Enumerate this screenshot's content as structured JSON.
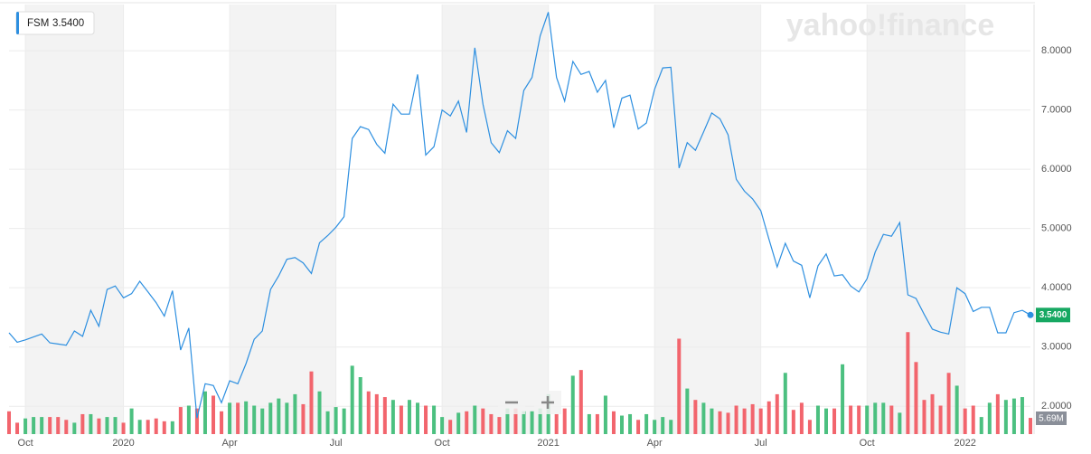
{
  "chart_data": {
    "type": "line",
    "watermark": "yahoo!finance",
    "categories": [
      null,
      null,
      "Oct",
      null,
      null,
      null,
      null,
      null,
      null,
      null,
      null,
      null,
      null,
      null,
      "2020",
      null,
      null,
      null,
      null,
      null,
      null,
      null,
      null,
      null,
      null,
      null,
      null,
      "Apr",
      null,
      null,
      null,
      null,
      null,
      null,
      null,
      null,
      null,
      null,
      null,
      null,
      "Jul",
      null,
      null,
      null,
      null,
      null,
      null,
      null,
      null,
      null,
      null,
      null,
      null,
      "Oct",
      null,
      null,
      null,
      null,
      null,
      null,
      null,
      null,
      null,
      null,
      null,
      null,
      "2021",
      null,
      null,
      null,
      null,
      null,
      null,
      null,
      null,
      null,
      null,
      null,
      null,
      "Apr",
      null,
      null,
      null,
      null,
      null,
      null,
      null,
      null,
      null,
      null,
      null,
      null,
      "Jul",
      null,
      null,
      null,
      null,
      null,
      null,
      null,
      null,
      null,
      null,
      null,
      null,
      "Oct",
      null,
      null,
      null,
      null,
      null,
      null,
      null,
      null,
      null,
      null,
      null,
      "2022",
      null,
      null,
      null,
      null,
      null,
      null,
      null,
      null
    ],
    "series": [
      {
        "name": "FSM",
        "color": "#2d8fe0",
        "last_label": "3.5400",
        "label_color": "#16a862",
        "values": [
          3.24,
          3.08,
          3.12,
          3.17,
          3.22,
          3.07,
          3.05,
          3.03,
          3.27,
          3.18,
          3.62,
          3.35,
          3.97,
          4.03,
          3.83,
          3.9,
          4.11,
          3.93,
          3.75,
          3.52,
          3.95,
          2.95,
          3.32,
          1.8,
          2.38,
          2.35,
          2.06,
          2.43,
          2.38,
          2.72,
          3.13,
          3.27,
          3.97,
          4.2,
          4.48,
          4.51,
          4.42,
          4.24,
          4.76,
          4.88,
          5.02,
          5.2,
          6.52,
          6.72,
          6.67,
          6.42,
          6.27,
          7.1,
          6.93,
          6.93,
          7.6,
          6.24,
          6.38,
          7.0,
          6.9,
          7.15,
          6.62,
          8.05,
          7.1,
          6.45,
          6.28,
          6.65,
          6.52,
          7.33,
          7.55,
          8.25,
          8.65,
          7.55,
          7.15,
          7.82,
          7.6,
          7.65,
          7.3,
          7.5,
          6.7,
          7.2,
          7.25,
          6.68,
          6.78,
          7.35,
          7.71,
          7.72,
          6.02,
          6.45,
          6.32,
          6.63,
          6.95,
          6.85,
          6.58,
          5.83,
          5.63,
          5.5,
          5.3,
          4.82,
          4.35,
          4.75,
          4.45,
          4.38,
          3.83,
          4.37,
          4.57,
          4.2,
          4.22,
          4.03,
          3.93,
          4.15,
          4.6,
          4.9,
          4.87,
          5.1,
          3.88,
          3.82,
          3.55,
          3.3,
          3.25,
          3.22,
          4.0,
          3.9,
          3.6,
          3.67,
          3.67,
          3.24,
          3.24,
          3.58,
          3.62,
          3.54
        ]
      }
    ],
    "volume": {
      "up_color": "#4cc080",
      "down_color": "#f2656d",
      "ylim": [
        0,
        40
      ],
      "last_label": "5.69M",
      "values": [
        8,
        4,
        5.5,
        6,
        6,
        6,
        6,
        5,
        4,
        7,
        7,
        5.5,
        6,
        6,
        4,
        9,
        5,
        5,
        5.5,
        4.5,
        4.5,
        9.5,
        10,
        9,
        15,
        13.5,
        8,
        11,
        11,
        11.5,
        10,
        9,
        11,
        12.5,
        11,
        14,
        10.5,
        22,
        15,
        8,
        9.5,
        9,
        24,
        20,
        15,
        14,
        13,
        12,
        10,
        12,
        11,
        10,
        10,
        6,
        5,
        7.5,
        8,
        10,
        9,
        7,
        6,
        9,
        9,
        8,
        8,
        9,
        14,
        7,
        9,
        20.5,
        22.5,
        7,
        7,
        13.5,
        8,
        6.5,
        7,
        5,
        7,
        5,
        6,
        5,
        33.5,
        16,
        12,
        11,
        9,
        8,
        7.5,
        10,
        9,
        10.5,
        9,
        11.5,
        14,
        21.5,
        8.5,
        11,
        5,
        10,
        9,
        9,
        24.5,
        10,
        10,
        10,
        11,
        11,
        10,
        7.5,
        35.8,
        25.3,
        12,
        14,
        10,
        21.5,
        17,
        9,
        10,
        6,
        11,
        14,
        12,
        12.5,
        13,
        5.69
      ]
    },
    "ylim": [
      1.53,
      8.78
    ],
    "yticks": [
      {
        "value": 2,
        "label": "2.0000"
      },
      {
        "value": 3,
        "label": "3.0000"
      },
      {
        "value": 4,
        "label": "4.0000"
      },
      {
        "value": 5,
        "label": "5.0000"
      },
      {
        "value": 6,
        "label": "6.0000"
      },
      {
        "value": 7,
        "label": "7.0000"
      },
      {
        "value": 8,
        "label": "8.0000"
      }
    ],
    "grid": true,
    "shade_color": "#f3f3f3"
  }
}
